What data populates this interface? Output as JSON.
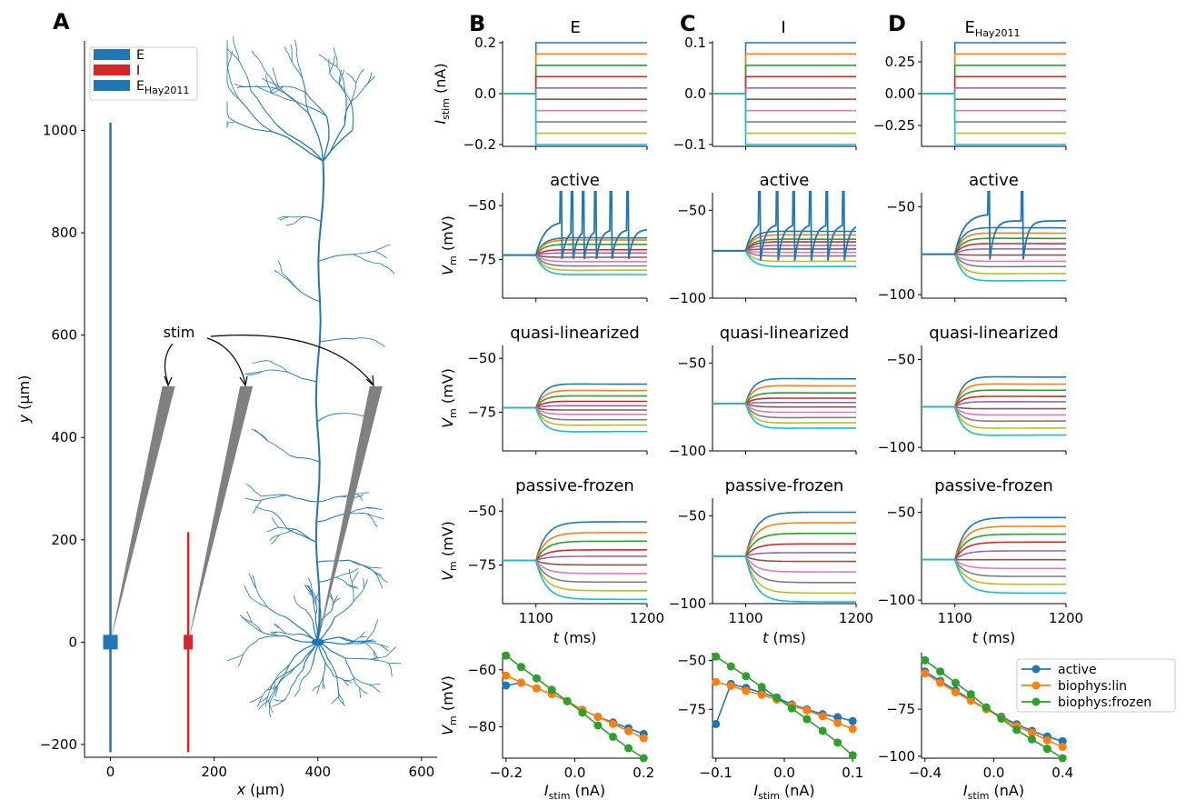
{
  "panel_letters": {
    "a": "A",
    "b": "B",
    "c": "C",
    "d": "D"
  },
  "colors": {
    "E": "#1f77b4",
    "I": "#d62728",
    "grey": "#808080",
    "traces": [
      "#1f77b4",
      "#ff7f0e",
      "#2ca02c",
      "#d62728",
      "#9467bd",
      "#8c564b",
      "#e377c2",
      "#7f7f7f",
      "#bcbd22",
      "#17becf"
    ]
  },
  "chart_data": [
    {
      "panel": "A",
      "type": "scatter",
      "xlabel_pre": "x",
      "xlabel_unit": " (µm)",
      "ylabel_pre": "y",
      "ylabel_unit": " (µm)",
      "xlim": [
        -50,
        630
      ],
      "ylim": [
        -225,
        1175
      ],
      "xticks": [
        "0",
        "200",
        "400",
        "600"
      ],
      "yticks": [
        "−200",
        "0",
        "200",
        "400",
        "600",
        "800",
        "1000"
      ],
      "legend": [
        {
          "label": "E",
          "sub": ""
        },
        {
          "label": "I",
          "sub": ""
        },
        {
          "label": "E",
          "sub": "Hay2011"
        }
      ],
      "annotation": "stim",
      "morphologies": [
        {
          "name": "E",
          "x": 0,
          "y_range": [
            -215,
            1015
          ]
        },
        {
          "name": "I",
          "x": 150,
          "y_range": [
            -215,
            215
          ]
        },
        {
          "name": "E_Hay2011",
          "soma": [
            400,
            0
          ],
          "apex_y": 1160
        }
      ]
    },
    {
      "panel": "B",
      "column_title": "E",
      "type": "line",
      "stim_ylim": [
        -0.2,
        0.2
      ],
      "stim_yticks": [
        "0.2",
        "0.0",
        "−0.2"
      ],
      "stim_ylabel": "I",
      "stim_ylabel_sub": "stim",
      "stim_ylabel_unit": " (nA)",
      "trace_panels": [
        {
          "title": "active",
          "ylim": [
            -93,
            -44
          ],
          "yticks": [
            "−50",
            "−75"
          ],
          "rest": -73,
          "steady": [
            -65,
            -66,
            -68,
            -70.5,
            -72,
            -74,
            -76,
            -78,
            -80,
            -82
          ],
          "spikes": [
            1122,
            1132,
            1142,
            1153,
            1167,
            1182
          ]
        },
        {
          "title": "quasi-linearized",
          "ylim": [
            -93,
            -44
          ],
          "yticks": [
            "−50",
            "−75"
          ],
          "rest": -73,
          "steady": [
            -62,
            -65,
            -67.5,
            -70,
            -72,
            -74,
            -76,
            -78.5,
            -81,
            -84
          ]
        },
        {
          "title": "passive-frozen",
          "ylim": [
            -93,
            -44
          ],
          "yticks": [
            "−50",
            "−75"
          ],
          "rest": -73,
          "steady": [
            -55,
            -60,
            -64,
            -68,
            -71,
            -75,
            -79,
            -83,
            -87,
            -91
          ]
        }
      ],
      "ylabel": "V",
      "ylabel_sub": "m",
      "ylabel_unit": " (mV)",
      "xlim": [
        1070,
        1200
      ],
      "xticks": [
        "1100",
        "1200"
      ],
      "xlabel": "t",
      "xlabel_unit": " (ms)",
      "iv": {
        "xlim": [
          -0.21,
          0.21
        ],
        "ylim": [
          -91,
          -54
        ],
        "xticks": [
          "−0.2",
          "0.0",
          "0.2"
        ],
        "yticks": [
          "−60",
          "−80"
        ],
        "xlabel": "I",
        "xlabel_sub": "stim",
        "xlabel_unit": " (nA)",
        "x": [
          -0.2,
          -0.156,
          -0.111,
          -0.067,
          -0.022,
          0.022,
          0.067,
          0.111,
          0.156,
          0.2
        ],
        "series": [
          {
            "name": "active",
            "values": [
              -65.5,
              -64.5,
              -66.5,
              -68.5,
              -71,
              -74,
              -76.5,
              -78.5,
              -80.5,
              -82.5
            ]
          },
          {
            "name": "biophys:lin",
            "values": [
              -62,
              -64.5,
              -66.5,
              -68.5,
              -71,
              -74,
              -76.5,
              -79,
              -81.5,
              -84
            ]
          },
          {
            "name": "biophys:frozen",
            "values": [
              -55,
              -59,
              -63,
              -67,
              -71,
              -75,
              -79.5,
              -83.5,
              -87.5,
              -91
            ]
          }
        ]
      }
    },
    {
      "panel": "C",
      "column_title": "I",
      "type": "line",
      "stim_ylim": [
        -0.1,
        0.1
      ],
      "stim_yticks": [
        "0.1",
        "0.0",
        "−0.1"
      ],
      "trace_panels": [
        {
          "title": "active",
          "ylim": [
            -100,
            -40
          ],
          "yticks": [
            "−50",
            "−100"
          ],
          "rest": -73,
          "steady": [
            -62,
            -64,
            -66.5,
            -68,
            -70,
            -72,
            -74,
            -76,
            -79,
            -82
          ],
          "spikes": [
            1112,
            1128,
            1143,
            1158,
            1173,
            1188
          ]
        },
        {
          "title": "quasi-linearized",
          "ylim": [
            -100,
            -40
          ],
          "yticks": [
            "−50",
            "−100"
          ],
          "rest": -73,
          "steady": [
            -59,
            -63,
            -67,
            -70,
            -72.5,
            -75,
            -78,
            -81,
            -84,
            -87
          ]
        },
        {
          "title": "passive-frozen",
          "ylim": [
            -100,
            -40
          ],
          "yticks": [
            "−50",
            "−100"
          ],
          "rest": -73,
          "steady": [
            -48,
            -54,
            -60,
            -66,
            -71,
            -76,
            -82,
            -88,
            -94,
            -99
          ]
        }
      ],
      "xlim": [
        1070,
        1200
      ],
      "xticks": [
        "1100",
        "1200"
      ],
      "xlabel": "t",
      "xlabel_unit": " (ms)",
      "iv": {
        "xlim": [
          -0.105,
          0.105
        ],
        "ylim": [
          -100,
          -46
        ],
        "xticks": [
          "−0.1",
          "0.0",
          "0.1"
        ],
        "yticks": [
          "−50",
          "−75"
        ],
        "xlabel": "I",
        "xlabel_sub": "stim",
        "xlabel_unit": " (nA)",
        "x": [
          -0.1,
          -0.078,
          -0.056,
          -0.033,
          -0.011,
          0.011,
          0.033,
          0.056,
          0.078,
          0.1
        ],
        "series": [
          {
            "name": "active",
            "values": [
              -82.5,
              -62,
              -64,
              -66.5,
              -69,
              -72.5,
              -75,
              -77.5,
              -79,
              -81
            ]
          },
          {
            "name": "biophys:lin",
            "values": [
              -61,
              -63,
              -65.5,
              -67.5,
              -70,
              -73,
              -75.5,
              -78.5,
              -82,
              -85
            ]
          },
          {
            "name": "biophys:frozen",
            "values": [
              -48,
              -53,
              -58,
              -63.5,
              -69,
              -74.5,
              -80,
              -86,
              -92,
              -98.5
            ]
          }
        ]
      }
    },
    {
      "panel": "D",
      "column_title": "E",
      "column_title_sub": "Hay2011",
      "type": "line",
      "stim_ylim": [
        -0.4,
        0.4
      ],
      "stim_yticks": [
        "0.25",
        "0.00",
        "−0.25"
      ],
      "trace_panels": [
        {
          "title": "active",
          "ylim": [
            -102,
            -42
          ],
          "yticks": [
            "−50",
            "−100"
          ],
          "rest": -77,
          "steady": [
            -62,
            -65,
            -68,
            -71,
            -74,
            -77.5,
            -81,
            -84,
            -88,
            -92
          ],
          "spikes": [
            1130,
            1160
          ]
        },
        {
          "title": "quasi-linearized",
          "ylim": [
            -102,
            -42
          ],
          "yticks": [
            "−50",
            "−100"
          ],
          "rest": -77,
          "steady": [
            -60,
            -64,
            -67.5,
            -71,
            -74,
            -78,
            -81.5,
            -85,
            -89,
            -93
          ]
        },
        {
          "title": "passive-frozen",
          "ylim": [
            -102,
            -42
          ],
          "yticks": [
            "−50",
            "−100"
          ],
          "rest": -77,
          "steady": [
            -53,
            -58,
            -62.5,
            -67,
            -72,
            -77,
            -82,
            -86.5,
            -91,
            -96
          ]
        }
      ],
      "xlim": [
        1070,
        1200
      ],
      "xticks": [
        "1100",
        "1200"
      ],
      "xlabel": "t",
      "xlabel_unit": " (ms)",
      "iv": {
        "xlim": [
          -0.42,
          0.42
        ],
        "ylim": [
          -101,
          -45
        ],
        "xticks": [
          "−0.4",
          "0.0",
          "0.4"
        ],
        "yticks": [
          "−75",
          "−100"
        ],
        "xlabel": "I",
        "xlabel_sub": "stim",
        "xlabel_unit": " (nA)",
        "x": [
          -0.4,
          -0.311,
          -0.222,
          -0.133,
          -0.044,
          0.044,
          0.133,
          0.222,
          0.311,
          0.4
        ],
        "series": [
          {
            "name": "active",
            "values": [
              -55,
              -60,
              -65,
              -70,
              -75,
              -79,
              -83,
              -86.5,
              -89.5,
              -92
            ]
          },
          {
            "name": "biophys:lin",
            "values": [
              -56,
              -61,
              -66,
              -70.5,
              -75,
              -79.5,
              -84,
              -87.5,
              -91.5,
              -95
            ]
          },
          {
            "name": "biophys:frozen",
            "values": [
              -49,
              -55,
              -61,
              -67,
              -74,
              -80,
              -86,
              -91,
              -96,
              -101
            ]
          }
        ]
      }
    }
  ],
  "iv_legend": [
    "active",
    "biophys:lin",
    "biophys:frozen"
  ]
}
